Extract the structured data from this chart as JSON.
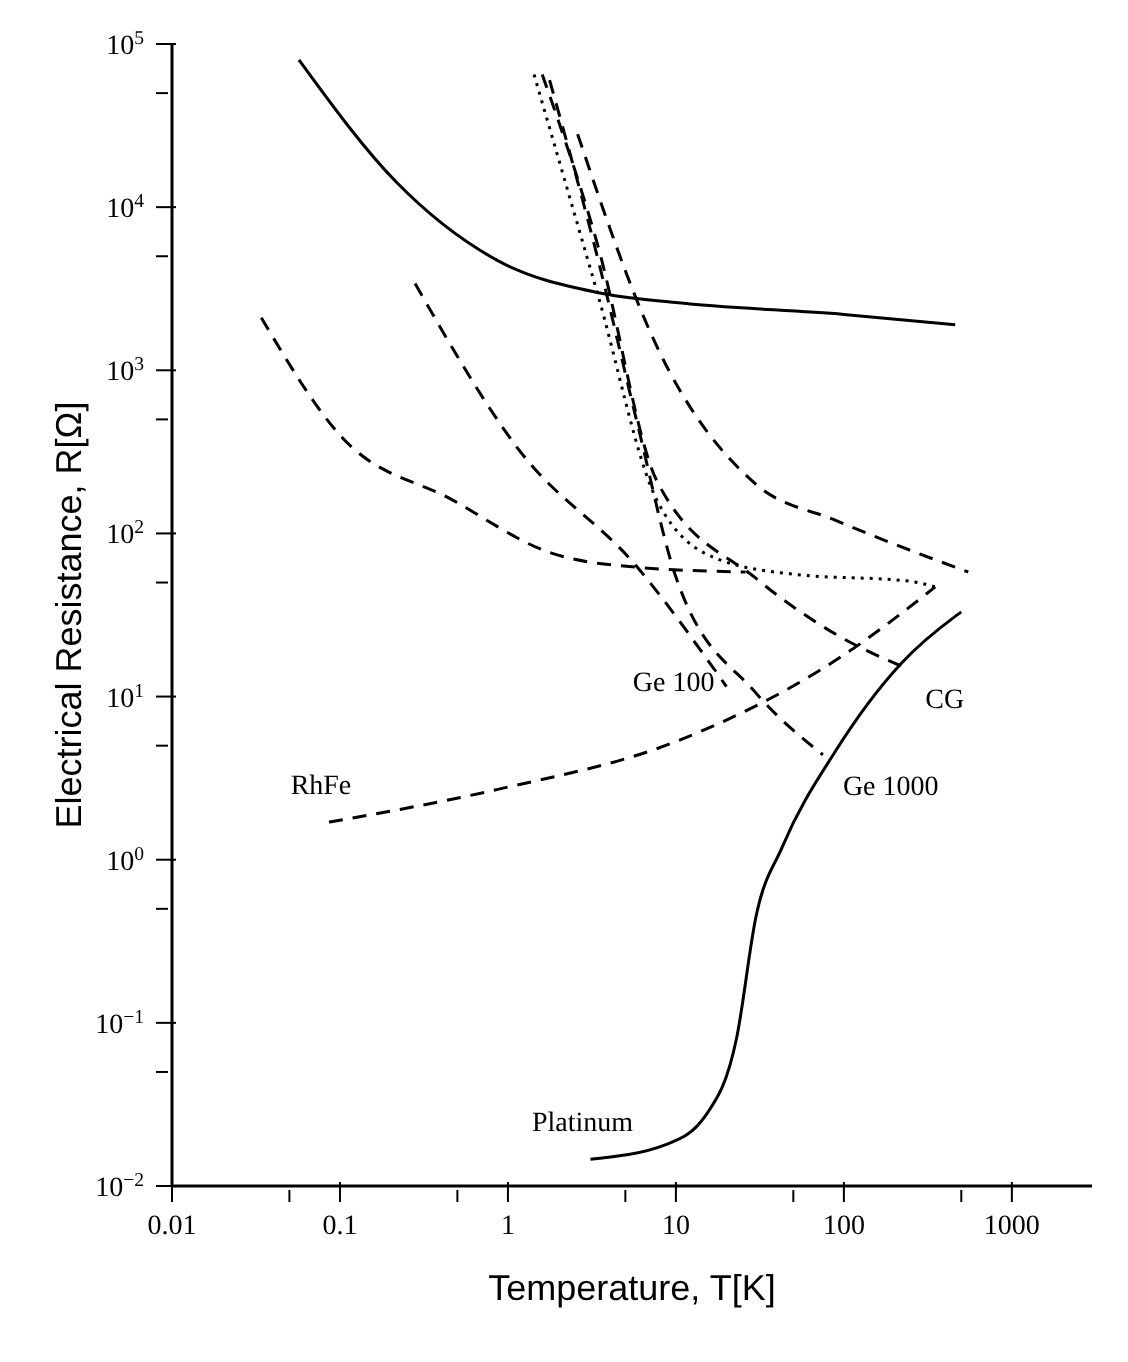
{
  "chart_data": {
    "type": "line",
    "xlabel": "Temperature, T[K]",
    "ylabel": "Electrical Resistance, R[Ω]",
    "log": "xy",
    "marker": "none",
    "xlim": [
      0.01,
      3000
    ],
    "xticks": [
      0.01,
      {
        "value": 0.05,
        "label": null
      },
      0.1,
      {
        "value": 0.5,
        "label": null
      },
      1,
      {
        "value": 5,
        "label": null
      },
      10,
      {
        "value": 50,
        "label": null
      },
      100,
      {
        "value": 500,
        "label": null
      },
      1000
    ],
    "ylim": [
      0.01,
      100000
    ],
    "yticks": [
      {
        "value": 0.01,
        "label": "10$^{−2}$"
      },
      {
        "value": 0.05,
        "label": null
      },
      {
        "value": 0.1,
        "label": "10$^{−1}$"
      },
      {
        "value": 0.5,
        "label": null
      },
      {
        "value": 1,
        "label": "10$^{0}$"
      },
      {
        "value": 5,
        "label": null
      },
      {
        "value": 10,
        "label": "10$^{1}$"
      },
      {
        "value": 50,
        "label": null
      },
      {
        "value": 100,
        "label": "10$^{2}$"
      },
      {
        "value": 500,
        "label": null
      },
      {
        "value": 1000,
        "label": "10$^{3}$"
      },
      {
        "value": 5000,
        "label": null
      },
      {
        "value": 10000,
        "label": "10$^{4}$"
      },
      {
        "value": 50000,
        "label": null
      },
      {
        "value": 100000,
        "label": "10$^{5}$"
      }
    ],
    "series": [
      {
        "color": "#000000",
        "line_style": "solid",
        "x": [
          0.057,
          0.22,
          0.87,
          3.4,
          10,
          100,
          460
        ],
        "values": [
          80000,
          14000,
          4700,
          3000,
          2600,
          2200,
          1900
        ]
      },
      {
        "color": "#000000",
        "line_style": "dashed",
        "x": [
          0.034,
          0.1,
          0.47,
          1.8,
          5.9,
          26
        ],
        "values": [
          2100,
          400,
          160,
          76,
          62,
          58
        ]
      },
      {
        "name": "Ge 100",
        "color": "#000000",
        "line_style": "dashed",
        "x": [
          0.28,
          1.15,
          5.9,
          20
        ],
        "values": [
          3400,
          330,
          62,
          11.5
        ]
      },
      {
        "name": "Ge 1000",
        "color": "#000000",
        "line_style": "dashed",
        "x": [
          1.77,
          3.4,
          5.9,
          10,
          30,
          75
        ],
        "values": [
          60000,
          5000,
          470,
          54,
          10.5,
          4.4
        ]
      },
      {
        "name": "CG",
        "color": "#000000",
        "line_style": "dashed",
        "x": [
          1.6,
          3.4,
          7.7,
          30,
          90,
          232
        ],
        "values": [
          65000,
          6000,
          210,
          53,
          24,
          15
        ]
      },
      {
        "color": "#000000",
        "line_style": "dashed",
        "x": [
          2.6,
          7.7,
          30,
          90,
          550
        ],
        "values": [
          28000,
          1400,
          200,
          120,
          58
        ]
      },
      {
        "color": "#000000",
        "line_style": "dotted",
        "x": [
          1.43,
          3.4,
          7.7,
          17.5,
          52,
          245,
          350
        ],
        "values": [
          65000,
          3000,
          160,
          70,
          56,
          51,
          47
        ]
      },
      {
        "name": "RhFe",
        "color": "#000000",
        "line_style": "dashed",
        "x": [
          0.086,
          0.87,
          10,
          100,
          350
        ],
        "values": [
          1.7,
          2.7,
          5.3,
          18,
          47
        ]
      },
      {
        "name": "Platinum",
        "color": "#000000",
        "line_style": "solid",
        "x": [
          3.1,
          8.8,
          15,
          23,
          30,
          43,
          90,
          220,
          460,
          500
        ],
        "values": [
          0.0146,
          0.018,
          0.027,
          0.081,
          0.45,
          1.2,
          4.7,
          16,
          31,
          33
        ]
      }
    ]
  }
}
